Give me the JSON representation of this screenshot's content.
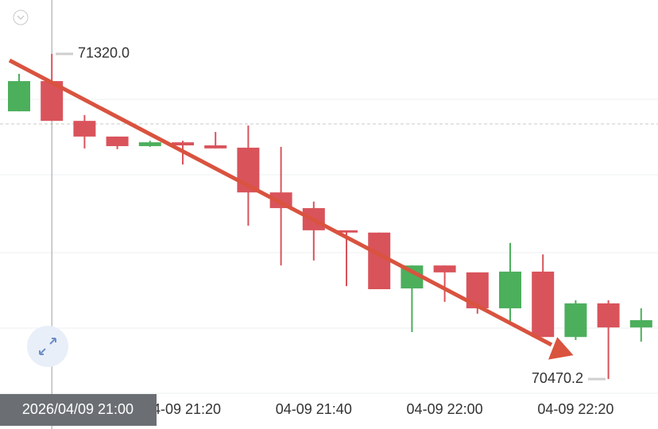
{
  "chart_data": {
    "type": "candlestick",
    "categories": [
      null,
      "2026/04/09 21:00",
      null,
      null,
      null,
      "04-09 21:20",
      null,
      null,
      null,
      "04-09 21:40",
      null,
      null,
      null,
      "04-09 22:00",
      null,
      null,
      null,
      "04-09 22:20",
      null,
      null
    ],
    "crosshair_index": 1,
    "open": [
      71170,
      71249,
      71145,
      71104,
      71079,
      71089,
      71081,
      71075,
      70958,
      70917,
      70859,
      70853,
      70707,
      70767,
      70749,
      70655,
      70751,
      70580,
      70668,
      70605
    ],
    "high": [
      71268,
      71320,
      71160,
      71104,
      71093,
      71093,
      71116,
      71133,
      71077,
      70934,
      70859,
      70853,
      70767,
      70767,
      70749,
      70826,
      70796,
      70676,
      70676,
      70655
    ],
    "low": [
      71170,
      71145,
      71073,
      71071,
      71077,
      71031,
      71073,
      70871,
      70767,
      70780,
      70713,
      70705,
      70593,
      70672,
      70641,
      70618,
      70580,
      70572,
      70470.2,
      70568
    ],
    "close": [
      71249,
      71145,
      71104,
      71079,
      71089,
      71081,
      71073,
      70958,
      70917,
      70859,
      70853,
      70705,
      70767,
      70749,
      70655,
      70751,
      70580,
      70668,
      70605,
      70624
    ],
    "up_color": "#4caf5c",
    "down_color": "#d9535b",
    "ylim": [
      70433,
      71461
    ],
    "price_line": 71137,
    "max_marker": {
      "value": 71320,
      "label": "71320.0"
    },
    "min_marker": {
      "value": 70470.2,
      "label": "70470.2"
    }
  }
}
